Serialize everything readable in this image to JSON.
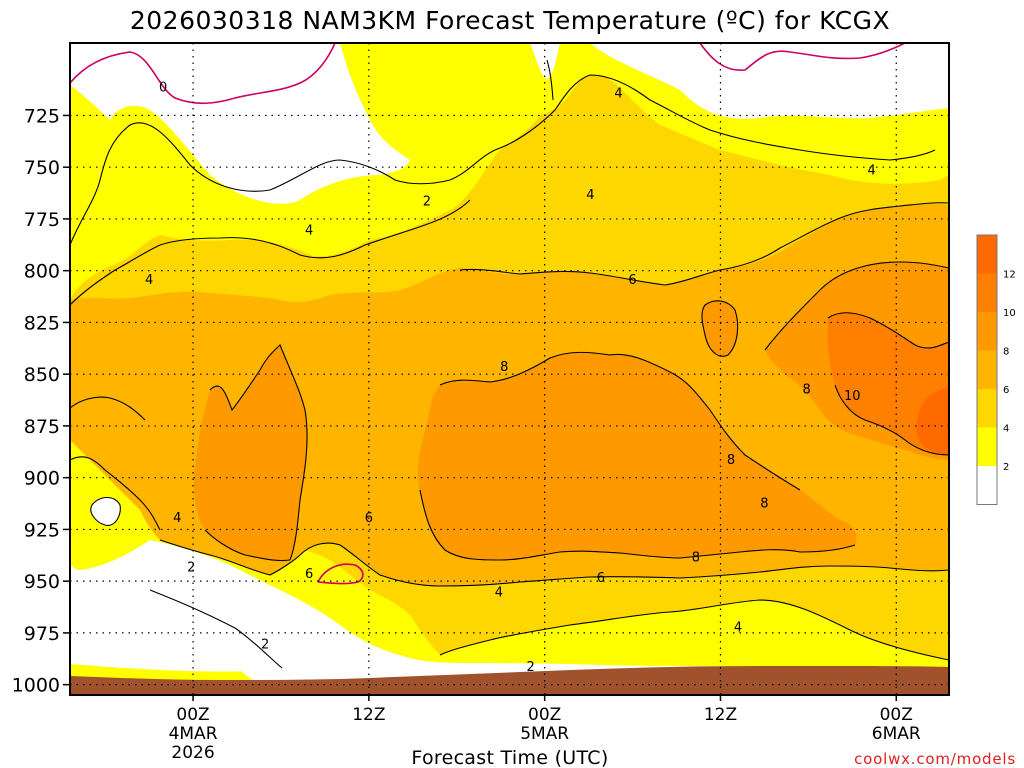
{
  "chart_data": {
    "type": "contour",
    "title": "2026030318 NAM3KM Forecast Temperature (ºC) for KCGX",
    "xlabel": "Forecast Time (UTC)",
    "ylabel": "",
    "ylim": [
      690,
      1005
    ],
    "y_inverted": true,
    "xlim_hours": [
      -7,
      43
    ],
    "y_ticks": [
      725,
      750,
      775,
      800,
      825,
      850,
      875,
      900,
      925,
      950,
      975,
      1000
    ],
    "x_ticks": [
      {
        "hour": 0,
        "lines": [
          "00Z",
          "4MAR",
          "2026"
        ]
      },
      {
        "hour": 10,
        "lines": [
          "12Z"
        ]
      },
      {
        "hour": 20,
        "lines": [
          "00Z",
          "5MAR"
        ]
      },
      {
        "hour": 30,
        "lines": [
          "12Z"
        ]
      },
      {
        "hour": 40,
        "lines": [
          "00Z",
          "6MAR"
        ]
      }
    ],
    "legend": {
      "position": "right",
      "boundaries": [
        2,
        4,
        6,
        8,
        10,
        12
      ],
      "colors": [
        "#ffffff",
        "#ffff00",
        "#ffd700",
        "#ffb400",
        "#ff9900",
        "#ff8000",
        "#ff6a00"
      ]
    },
    "contour_labels": [
      {
        "text": "0",
        "hour": -1.7,
        "p": 711
      },
      {
        "text": "4",
        "hour": 24.2,
        "p": 714
      },
      {
        "text": "2",
        "hour": 13.3,
        "p": 766
      },
      {
        "text": "4",
        "hour": 38.6,
        "p": 751
      },
      {
        "text": "4",
        "hour": 22.6,
        "p": 763
      },
      {
        "text": "4",
        "hour": 6.6,
        "p": 780
      },
      {
        "text": "4",
        "hour": -2.5,
        "p": 804
      },
      {
        "text": "6",
        "hour": 25.0,
        "p": 804
      },
      {
        "text": "8",
        "hour": 17.7,
        "p": 846
      },
      {
        "text": "8",
        "hour": 34.9,
        "p": 857
      },
      {
        "text": "10",
        "hour": 37.5,
        "p": 860
      },
      {
        "text": "8",
        "hour": 30.6,
        "p": 891
      },
      {
        "text": "8",
        "hour": 32.5,
        "p": 912
      },
      {
        "text": "6",
        "hour": 10.0,
        "p": 919
      },
      {
        "text": "4",
        "hour": -0.9,
        "p": 919
      },
      {
        "text": "8",
        "hour": 28.6,
        "p": 938
      },
      {
        "text": "2",
        "hour": -0.1,
        "p": 943
      },
      {
        "text": "6",
        "hour": 6.6,
        "p": 946
      },
      {
        "text": "6",
        "hour": 23.2,
        "p": 948
      },
      {
        "text": "4",
        "hour": 17.4,
        "p": 955
      },
      {
        "text": "4",
        "hour": 31.0,
        "p": 972
      },
      {
        "text": "2",
        "hour": 4.1,
        "p": 980
      },
      {
        "text": "2",
        "hour": 19.2,
        "p": 991
      }
    ]
  },
  "footer": {
    "credit": "coolwx.com/models"
  }
}
